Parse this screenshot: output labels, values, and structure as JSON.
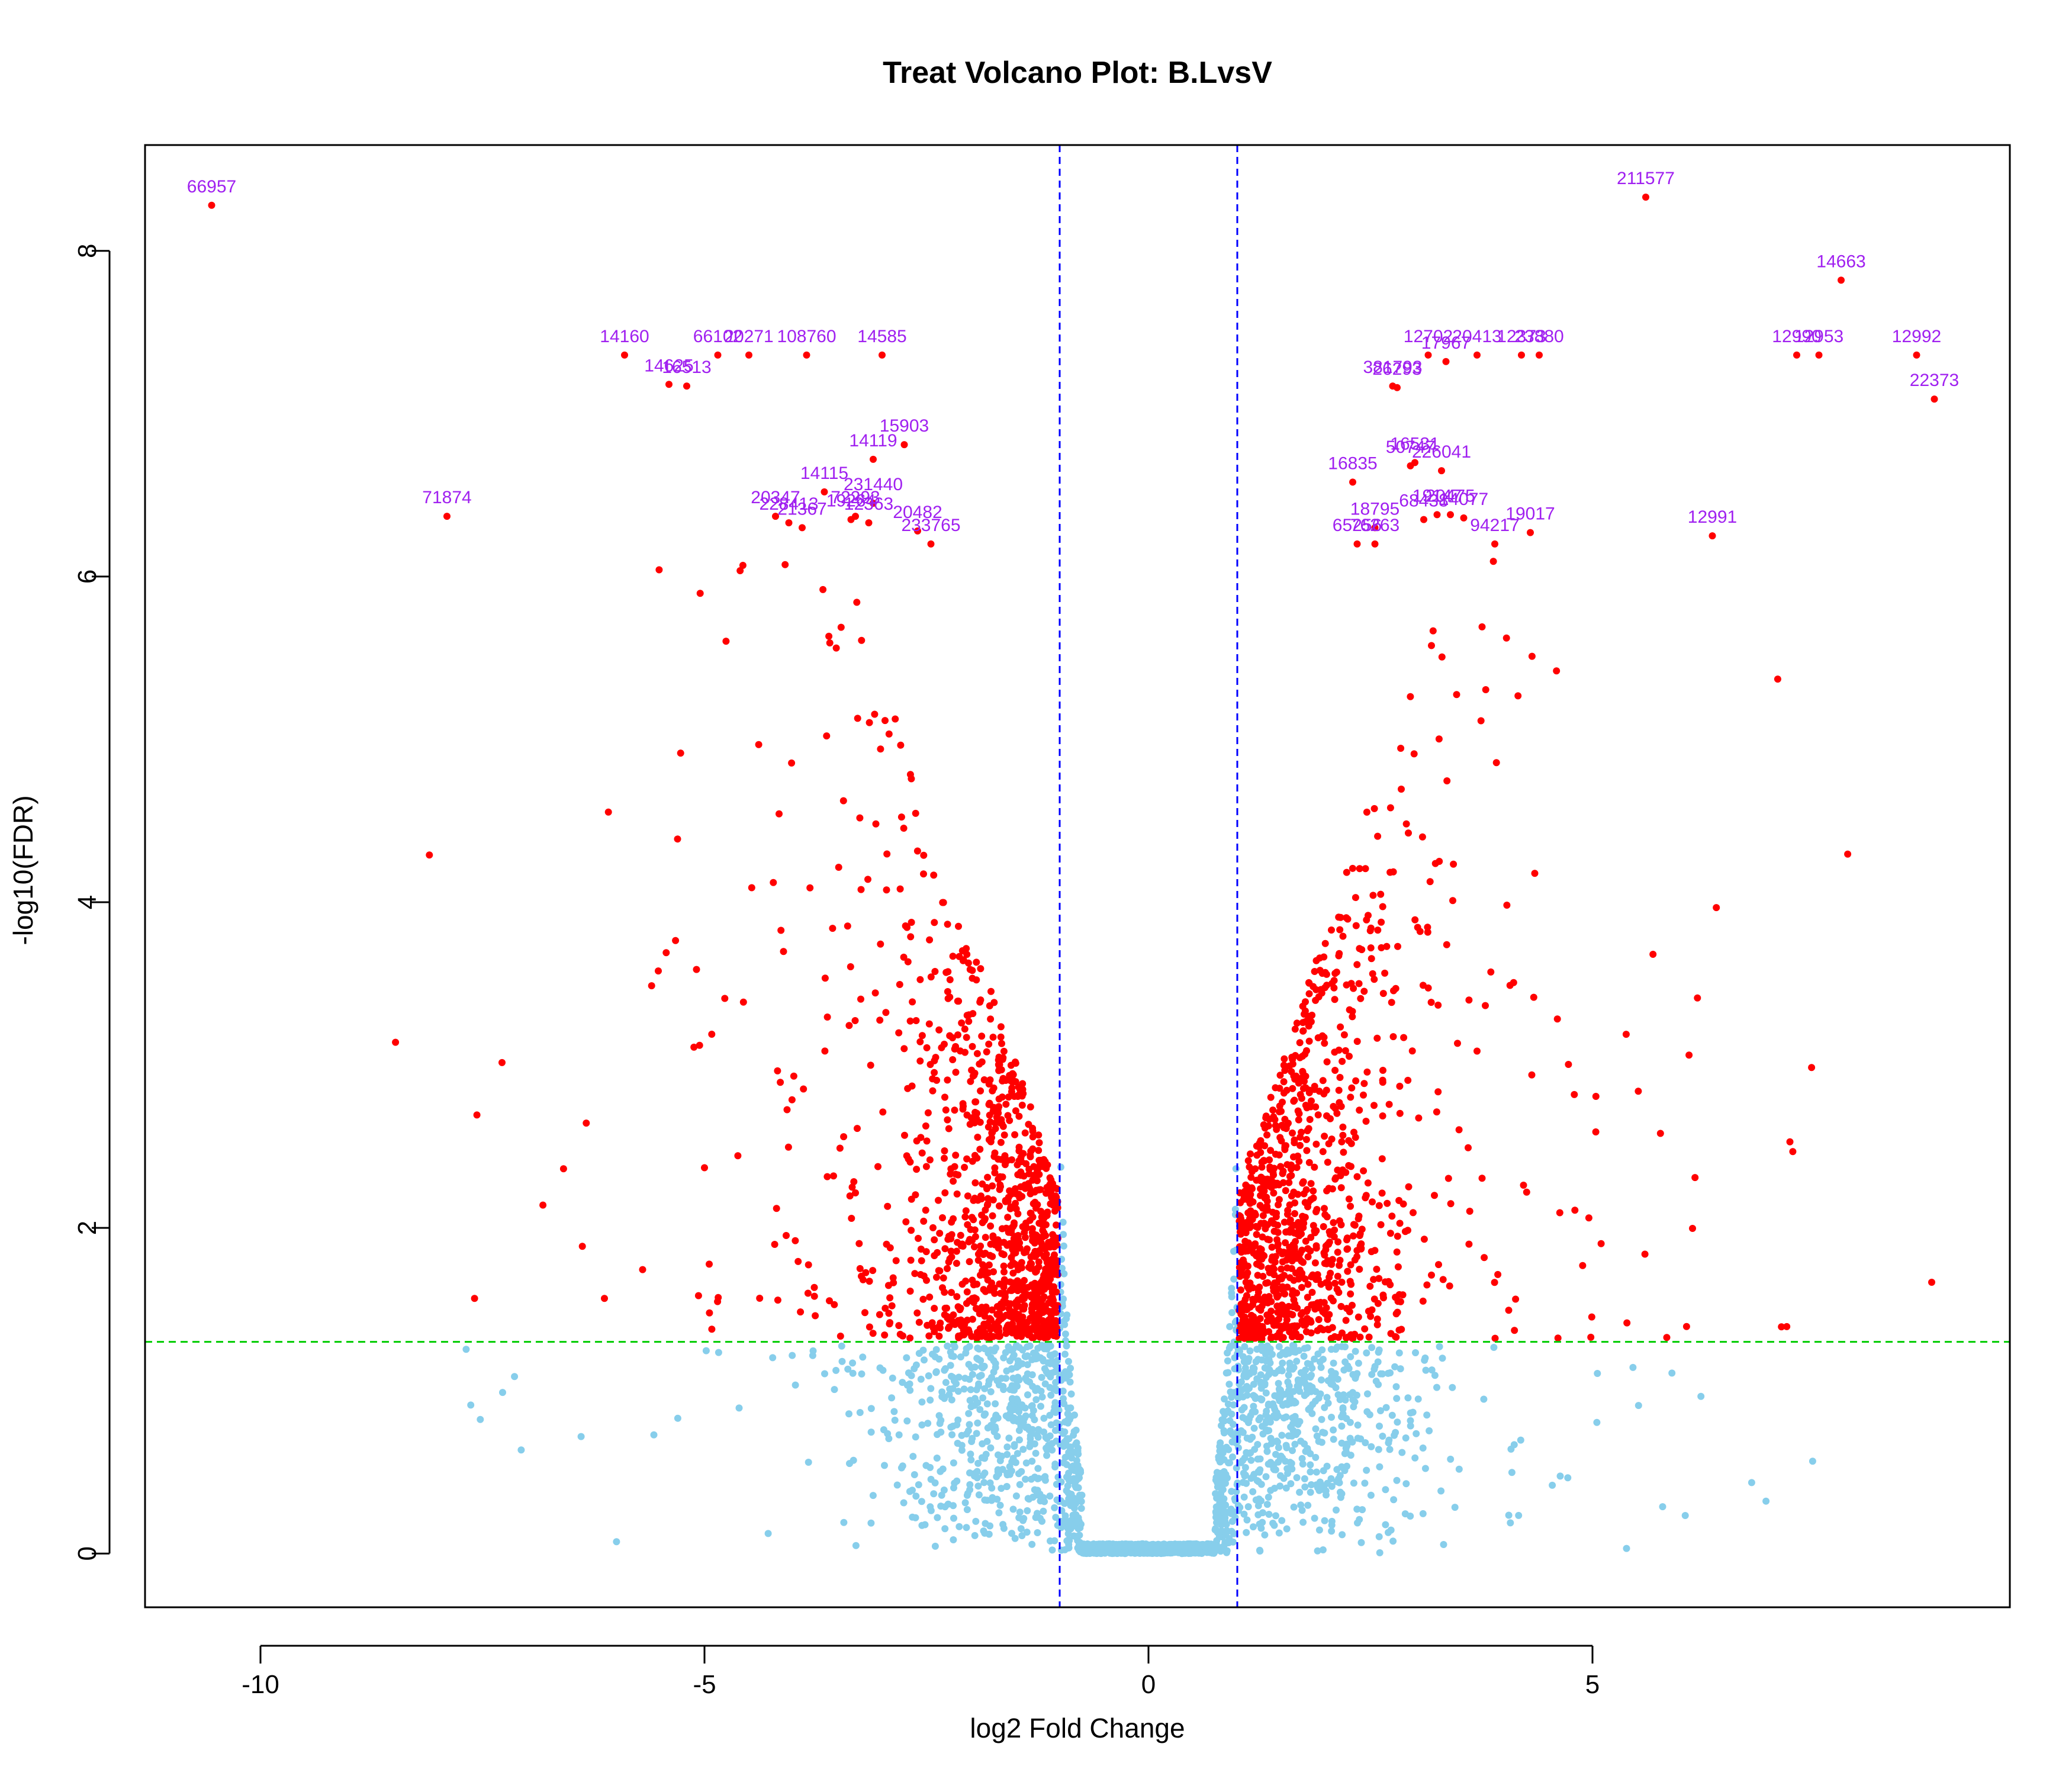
{
  "chart_data": {
    "type": "scatter",
    "title": "Treat Volcano Plot: B.LvsV",
    "xlabel": "log2 Fold Change",
    "ylabel": "-log10(FDR)",
    "xlim": [
      -11.3,
      9.7
    ],
    "ylim": [
      -0.33,
      8.65
    ],
    "x_ticks": [
      -10,
      -5,
      0,
      5
    ],
    "y_ticks": [
      0,
      2,
      4,
      6,
      8
    ],
    "grid": false,
    "legend": "none",
    "thresholds": {
      "log2fc": [
        -1,
        1
      ],
      "neg_log10_fdr": 1.3,
      "vline_color": "#0000ff",
      "hline_color": "#00cc00"
    },
    "colors": {
      "significant": "#ff0000",
      "not_significant": "#87ceeb",
      "gene_label": "#a020f0",
      "axis": "#000000"
    },
    "labeled_genes": [
      {
        "label": "66957",
        "x": -10.55,
        "y": 8.28
      },
      {
        "label": "211577",
        "x": 5.6,
        "y": 8.33
      },
      {
        "label": "14663",
        "x": 7.8,
        "y": 7.82
      },
      {
        "label": "14160",
        "x": -5.9,
        "y": 7.36
      },
      {
        "label": "66102",
        "x": -4.85,
        "y": 7.36
      },
      {
        "label": "20271",
        "x": -4.5,
        "y": 7.36
      },
      {
        "label": "108760",
        "x": -3.85,
        "y": 7.36
      },
      {
        "label": "14585",
        "x": -3.0,
        "y": 7.36
      },
      {
        "label": "14625",
        "x": -5.4,
        "y": 7.18
      },
      {
        "label": "16513",
        "x": -5.2,
        "y": 7.17
      },
      {
        "label": "12702",
        "x": 3.15,
        "y": 7.36
      },
      {
        "label": "20413",
        "x": 3.7,
        "y": 7.36
      },
      {
        "label": "12373",
        "x": 4.2,
        "y": 7.36
      },
      {
        "label": "23880",
        "x": 4.4,
        "y": 7.36
      },
      {
        "label": "17967",
        "x": 3.35,
        "y": 7.32
      },
      {
        "label": "12990",
        "x": 7.3,
        "y": 7.36
      },
      {
        "label": "12953",
        "x": 7.55,
        "y": 7.36
      },
      {
        "label": "12992",
        "x": 8.65,
        "y": 7.36
      },
      {
        "label": "22373",
        "x": 8.85,
        "y": 7.09
      },
      {
        "label": "381793",
        "x": 2.75,
        "y": 7.17
      },
      {
        "label": "26293",
        "x": 2.8,
        "y": 7.16
      },
      {
        "label": "15903",
        "x": -2.75,
        "y": 6.81
      },
      {
        "label": "14119",
        "x": -3.1,
        "y": 6.72
      },
      {
        "label": "16531",
        "x": 3.0,
        "y": 6.7
      },
      {
        "label": "226041",
        "x": 3.3,
        "y": 6.65
      },
      {
        "label": "50747",
        "x": 2.95,
        "y": 6.68
      },
      {
        "label": "16835",
        "x": 2.3,
        "y": 6.58
      },
      {
        "label": "14115",
        "x": -3.65,
        "y": 6.52
      },
      {
        "label": "231440",
        "x": -3.1,
        "y": 6.45
      },
      {
        "label": "71874",
        "x": -7.9,
        "y": 6.37
      },
      {
        "label": "20347",
        "x": -4.2,
        "y": 6.37
      },
      {
        "label": "72293",
        "x": -3.3,
        "y": 6.37
      },
      {
        "label": "228413",
        "x": -4.05,
        "y": 6.33
      },
      {
        "label": "21367",
        "x": -3.9,
        "y": 6.3
      },
      {
        "label": "19264",
        "x": -3.35,
        "y": 6.35
      },
      {
        "label": "12363",
        "x": -3.15,
        "y": 6.33
      },
      {
        "label": "20482",
        "x": -2.6,
        "y": 6.28
      },
      {
        "label": "233765",
        "x": -2.45,
        "y": 6.2
      },
      {
        "label": "18795",
        "x": 2.55,
        "y": 6.3
      },
      {
        "label": "19147",
        "x": 3.25,
        "y": 6.38
      },
      {
        "label": "20475",
        "x": 3.4,
        "y": 6.38
      },
      {
        "label": "68438",
        "x": 3.1,
        "y": 6.35
      },
      {
        "label": "14077",
        "x": 3.55,
        "y": 6.36
      },
      {
        "label": "19017",
        "x": 4.3,
        "y": 6.27
      },
      {
        "label": "94217",
        "x": 3.9,
        "y": 6.2
      },
      {
        "label": "65256",
        "x": 2.35,
        "y": 6.2
      },
      {
        "label": "76263",
        "x": 2.55,
        "y": 6.2
      },
      {
        "label": "12991",
        "x": 6.35,
        "y": 6.25
      }
    ]
  }
}
